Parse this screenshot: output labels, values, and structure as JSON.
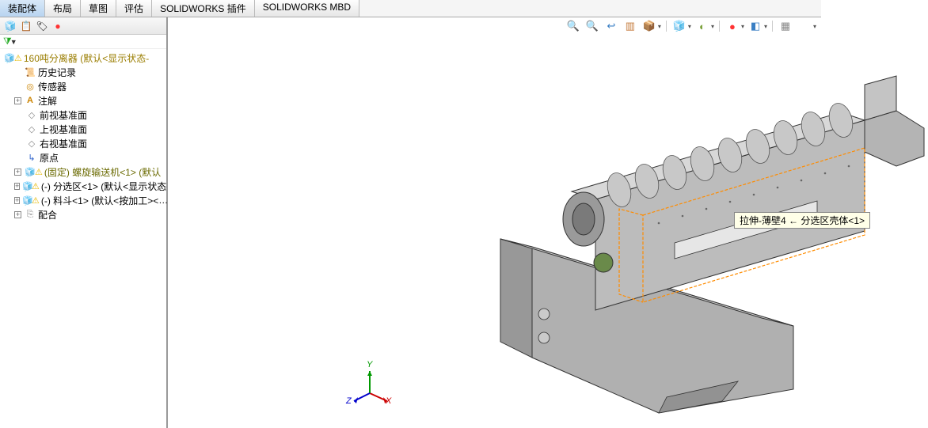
{
  "tabs": {
    "items": [
      {
        "label": "装配体",
        "active": true
      },
      {
        "label": "布局",
        "active": false
      },
      {
        "label": "草图",
        "active": false
      },
      {
        "label": "评估",
        "active": false
      },
      {
        "label": "SOLIDWORKS 插件",
        "active": false
      },
      {
        "label": "SOLIDWORKS MBD",
        "active": false
      }
    ]
  },
  "panel_toolbar": {
    "icons": [
      {
        "name": "assembly-icon",
        "glyph": "🧊",
        "color": "#d4a017"
      },
      {
        "name": "sheet-icon",
        "glyph": "📋",
        "color": "#cc7a00"
      },
      {
        "name": "hierarchy-icon",
        "glyph": "🏷",
        "color": "#cc7a00"
      },
      {
        "name": "appearance-icon",
        "glyph": "●",
        "color": "#ff3333"
      }
    ]
  },
  "filter": {
    "glyph": "▼"
  },
  "tree": {
    "root": {
      "label": "160吨分离器  (默认<显示状态-",
      "icon": "🧊",
      "warn": true
    },
    "items": [
      {
        "label": "历史记录",
        "icon": "📜",
        "icon_color": "#cc8400",
        "indent": 1,
        "exp": ""
      },
      {
        "label": "传感器",
        "icon": "◎",
        "icon_color": "#cc8400",
        "indent": 1,
        "exp": ""
      },
      {
        "label": "注解",
        "icon": "A",
        "icon_color": "#cc8400",
        "indent": 1,
        "exp": "+",
        "boxed": true
      },
      {
        "label": "前视基准面",
        "icon": "◇",
        "icon_color": "#888",
        "indent": 2,
        "exp": ""
      },
      {
        "label": "上视基准面",
        "icon": "◇",
        "icon_color": "#888",
        "indent": 2,
        "exp": ""
      },
      {
        "label": "右视基准面",
        "icon": "◇",
        "icon_color": "#888",
        "indent": 2,
        "exp": ""
      },
      {
        "label": "原点",
        "icon": "↳",
        "icon_color": "#3366cc",
        "indent": 2,
        "exp": ""
      },
      {
        "label": "(固定) 螺旋输送机<1> (默认",
        "icon": "🧊",
        "icon_color": "#d4a017",
        "indent": 1,
        "exp": "+",
        "boxed": true,
        "warn": true,
        "highlight": true
      },
      {
        "label": "(-) 分选区<1> (默认<显示状态",
        "icon": "🧊",
        "icon_color": "#d4a017",
        "indent": 1,
        "exp": "+",
        "boxed": true,
        "warn": true
      },
      {
        "label": "(-) 料斗<1> (默认<按加工><",
        "icon": "🧊",
        "icon_color": "#d4a017",
        "indent": 1,
        "exp": "+",
        "boxed": true,
        "warn": true,
        "trail": "…"
      },
      {
        "label": "配合",
        "icon": "⎘",
        "icon_color": "#888",
        "indent": 1,
        "exp": "+",
        "boxed": true
      }
    ]
  },
  "view_toolbar": {
    "icons": [
      {
        "name": "zoom-fit-icon",
        "glyph": "🔍",
        "color": "#3a7fc4"
      },
      {
        "name": "zoom-area-icon",
        "glyph": "🔍",
        "color": "#3a7fc4"
      },
      {
        "name": "prev-view-icon",
        "glyph": "↩",
        "color": "#3a7fc4"
      },
      {
        "name": "section-icon",
        "glyph": "▥",
        "color": "#c47a3a"
      },
      {
        "name": "view-orient-icon",
        "glyph": "📦",
        "color": "#c47a3a",
        "drop": true
      },
      {
        "name": "sep1",
        "sep": true
      },
      {
        "name": "display-style-icon",
        "glyph": "🧊",
        "color": "#5aa0e0",
        "drop": true
      },
      {
        "name": "hide-show-icon",
        "glyph": "◐",
        "color": "#7aa03a",
        "drop": true
      },
      {
        "name": "sep2",
        "sep": true
      },
      {
        "name": "appearance2-icon",
        "glyph": "●",
        "color": "#ff3333",
        "drop": true
      },
      {
        "name": "scene-icon",
        "glyph": "◧",
        "color": "#3a7fc4",
        "drop": true
      },
      {
        "name": "sep3",
        "sep": true
      },
      {
        "name": "render-icon",
        "glyph": "▦",
        "color": "#888"
      },
      {
        "name": "settings-icon",
        "glyph": "",
        "color": "#888",
        "drop": true
      }
    ]
  },
  "tooltip": {
    "text": "拉伸-薄壁4 ← 分选区壳体<1>"
  },
  "triad": {
    "axes": {
      "x": "X",
      "y": "Y",
      "z": "Z"
    },
    "colors": {
      "x": "#cc0000",
      "y": "#009900",
      "z": "#0000cc"
    }
  },
  "model": {
    "body_fill": "#b8b8b8",
    "body_stroke": "#333",
    "dark_fill": "#888",
    "light_fill": "#d6d6d6",
    "highlight_color": "#ff8c00"
  }
}
